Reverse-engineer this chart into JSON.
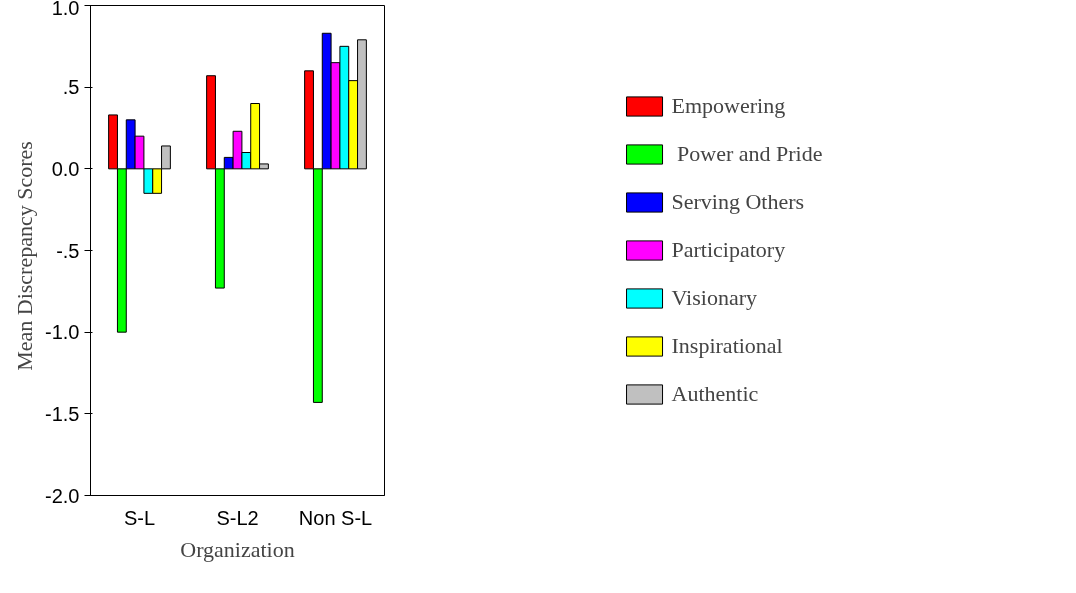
{
  "chart_data": {
    "type": "bar",
    "xlabel": "Organization",
    "ylabel": "Mean Discrepancy   Scores",
    "categories": [
      "S-L",
      "S-L2",
      "Non S-L"
    ],
    "series": [
      {
        "name": "Empowering",
        "color": "#ff0000",
        "values": [
          0.33,
          0.57,
          0.6
        ]
      },
      {
        "name": " Power and Pride",
        "color": "#00ff00",
        "values": [
          -1.0,
          -0.73,
          -1.43
        ]
      },
      {
        "name": "Serving Others",
        "color": "#0000ff",
        "values": [
          0.3,
          0.07,
          0.83
        ]
      },
      {
        "name": "Participatory",
        "color": "#ff00ff",
        "values": [
          0.2,
          0.23,
          0.65
        ]
      },
      {
        "name": "Visionary",
        "color": "#00ffff",
        "values": [
          -0.15,
          0.1,
          0.75
        ]
      },
      {
        "name": "Inspirational",
        "color": "#ffff00",
        "values": [
          -0.15,
          0.4,
          0.54
        ]
      },
      {
        "name": "Authentic",
        "color": "#c0c0c0",
        "values": [
          0.14,
          0.03,
          0.79
        ]
      }
    ],
    "ylim": [
      -2,
      1
    ],
    "yticks": [
      {
        "value": -2,
        "label": "-2.0"
      },
      {
        "value": -1.5,
        "label": "-1.5"
      },
      {
        "value": -1,
        "label": "-1.0"
      },
      {
        "value": -0.5,
        "label": "-.5"
      },
      {
        "value": 0,
        "label": "0.0"
      },
      {
        "value": 0.5,
        "label": ".5"
      },
      {
        "value": 1,
        "label": "1.0"
      }
    ],
    "grid": false,
    "legend": "right"
  }
}
